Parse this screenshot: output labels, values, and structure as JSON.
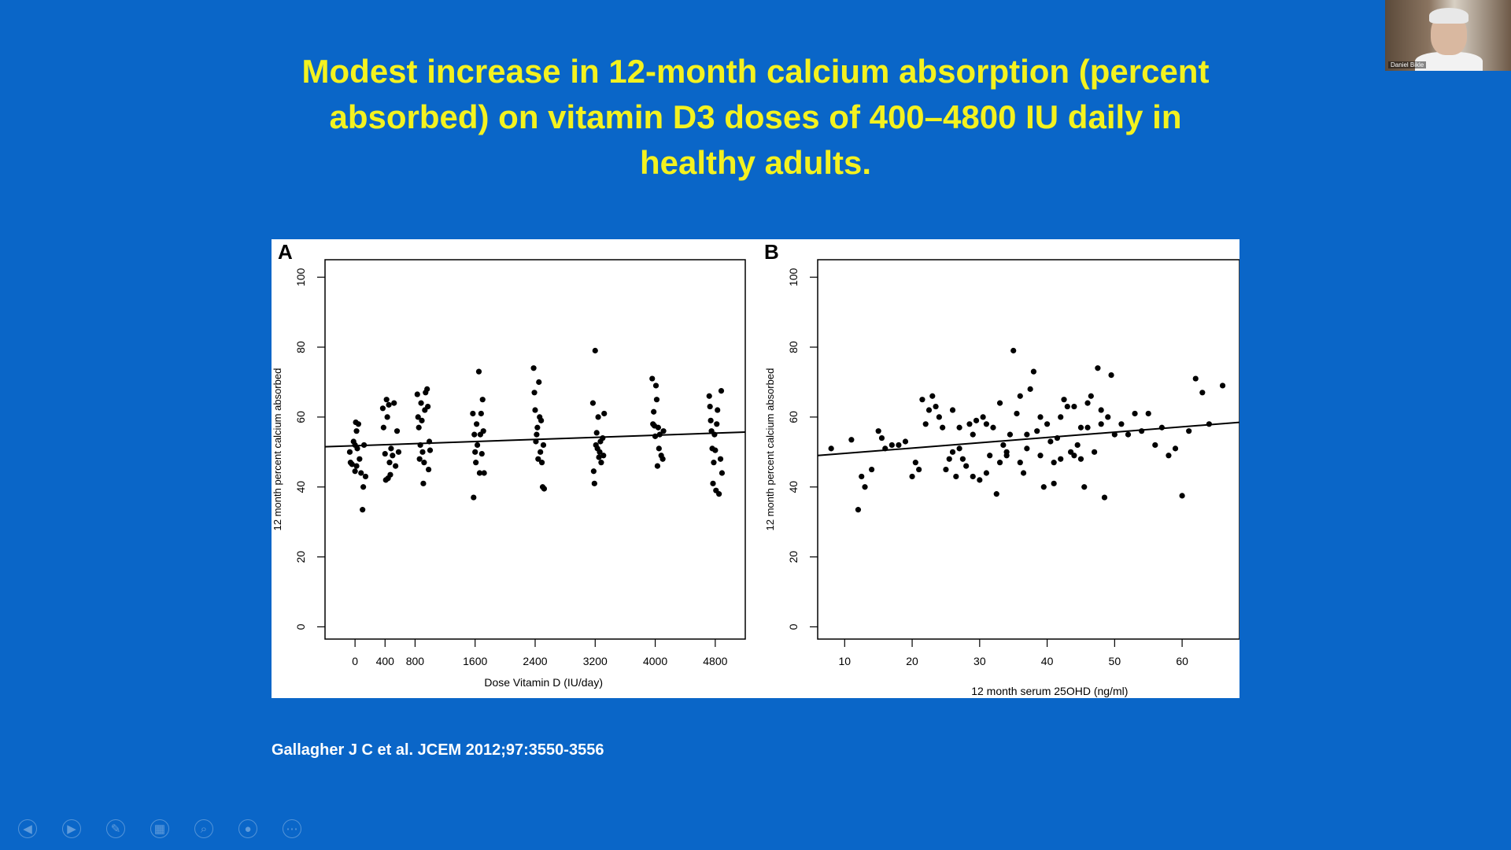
{
  "slide": {
    "title_lines": [
      "Modest increase in 12-month calcium absorption (percent",
      "absorbed) on vitamin D3 doses of 400–4800 IU daily in",
      "healthy adults."
    ],
    "citation": "Gallagher J C et al. JCEM 2012;97:3550-3556"
  },
  "webcam": {
    "name": "Daniel Bikle"
  },
  "toolbar": {
    "icons": [
      "prev-icon",
      "next-icon",
      "pen-icon",
      "slides-icon",
      "zoom-icon",
      "pointer-icon",
      "more-icon"
    ],
    "glyphs": [
      "◀",
      "▶",
      "✎",
      "▦",
      "⌕",
      "●",
      "⋯"
    ]
  },
  "chart_data": [
    {
      "type": "scatter",
      "panel_label": "A",
      "xlabel": "Dose Vitamin D (IU/day)",
      "ylabel": "12 month percent calcium absorbed",
      "xlim": [
        -400,
        5200
      ],
      "ylim": [
        -3.5,
        105
      ],
      "x_ticks": [
        0,
        400,
        800,
        1600,
        2400,
        3200,
        4000,
        4800
      ],
      "y_ticks": [
        0,
        20,
        40,
        60,
        80,
        100
      ],
      "trend": {
        "x": [
          -400,
          5200
        ],
        "y": [
          51.5,
          55.7
        ]
      },
      "points": [
        [
          -70,
          50
        ],
        [
          -40,
          46.5
        ],
        [
          -20,
          53
        ],
        [
          0,
          52
        ],
        [
          0,
          44.5
        ],
        [
          10,
          58.5
        ],
        [
          20,
          56
        ],
        [
          30,
          51
        ],
        [
          45,
          58
        ],
        [
          60,
          48
        ],
        [
          80,
          44
        ],
        [
          100,
          33.5
        ],
        [
          110,
          40
        ],
        [
          120,
          52
        ],
        [
          140,
          43
        ],
        [
          -60,
          47
        ],
        [
          20,
          46
        ],
        [
          370,
          62.5
        ],
        [
          380,
          57
        ],
        [
          400,
          49.5
        ],
        [
          410,
          42
        ],
        [
          420,
          65
        ],
        [
          430,
          60
        ],
        [
          450,
          63.5
        ],
        [
          460,
          47
        ],
        [
          470,
          43.5
        ],
        [
          480,
          51
        ],
        [
          500,
          49
        ],
        [
          520,
          64
        ],
        [
          540,
          46
        ],
        [
          560,
          56
        ],
        [
          580,
          50
        ],
        [
          440,
          42.5
        ],
        [
          830,
          66.5
        ],
        [
          840,
          60
        ],
        [
          850,
          57
        ],
        [
          860,
          48
        ],
        [
          870,
          52
        ],
        [
          880,
          64
        ],
        [
          890,
          59
        ],
        [
          900,
          50
        ],
        [
          910,
          41
        ],
        [
          920,
          47
        ],
        [
          930,
          62
        ],
        [
          940,
          67
        ],
        [
          960,
          68
        ],
        [
          970,
          63
        ],
        [
          990,
          53
        ],
        [
          1000,
          50.5
        ],
        [
          980,
          45
        ],
        [
          1570,
          61
        ],
        [
          1580,
          37
        ],
        [
          1590,
          55
        ],
        [
          1600,
          50
        ],
        [
          1610,
          47
        ],
        [
          1620,
          58
        ],
        [
          1630,
          52
        ],
        [
          1650,
          73
        ],
        [
          1660,
          44
        ],
        [
          1670,
          55
        ],
        [
          1680,
          61
        ],
        [
          1690,
          49.5
        ],
        [
          1700,
          65
        ],
        [
          1710,
          56
        ],
        [
          1720,
          44
        ],
        [
          2380,
          74
        ],
        [
          2390,
          67
        ],
        [
          2400,
          62
        ],
        [
          2410,
          53
        ],
        [
          2420,
          55
        ],
        [
          2430,
          57
        ],
        [
          2440,
          48
        ],
        [
          2450,
          70
        ],
        [
          2460,
          60
        ],
        [
          2470,
          50
        ],
        [
          2480,
          59
        ],
        [
          2490,
          47
        ],
        [
          2500,
          40
        ],
        [
          2510,
          52
        ],
        [
          2520,
          39.5
        ],
        [
          3170,
          64
        ],
        [
          3180,
          44.5
        ],
        [
          3190,
          41
        ],
        [
          3200,
          79
        ],
        [
          3210,
          52
        ],
        [
          3220,
          55.5
        ],
        [
          3230,
          51
        ],
        [
          3240,
          60
        ],
        [
          3250,
          48.5
        ],
        [
          3260,
          50
        ],
        [
          3270,
          53
        ],
        [
          3280,
          47
        ],
        [
          3300,
          54
        ],
        [
          3310,
          49
        ],
        [
          3320,
          61
        ],
        [
          3960,
          71
        ],
        [
          3970,
          58
        ],
        [
          3980,
          61.5
        ],
        [
          3990,
          57.5
        ],
        [
          4000,
          54.5
        ],
        [
          4010,
          69
        ],
        [
          4020,
          65
        ],
        [
          4030,
          46
        ],
        [
          4040,
          57
        ],
        [
          4050,
          51
        ],
        [
          4060,
          55
        ],
        [
          4080,
          49
        ],
        [
          4100,
          48
        ],
        [
          4110,
          56
        ],
        [
          4720,
          66
        ],
        [
          4730,
          63
        ],
        [
          4740,
          59
        ],
        [
          4750,
          56
        ],
        [
          4760,
          51
        ],
        [
          4770,
          41
        ],
        [
          4780,
          47
        ],
        [
          4790,
          55
        ],
        [
          4800,
          50.5
        ],
        [
          4820,
          58
        ],
        [
          4830,
          62
        ],
        [
          4850,
          38
        ],
        [
          4870,
          48
        ],
        [
          4880,
          67.5
        ],
        [
          4890,
          44
        ],
        [
          4810,
          39
        ]
      ]
    },
    {
      "type": "scatter",
      "panel_label": "B",
      "xlabel": "12 month serum 25OHD (ng/ml)",
      "ylabel": "12 month percent calcium absorbed",
      "xlim": [
        6,
        68.5
      ],
      "ylim": [
        -3.5,
        105
      ],
      "x_ticks": [
        10,
        20,
        30,
        40,
        50,
        60
      ],
      "y_ticks": [
        0,
        20,
        40,
        60,
        80,
        100
      ],
      "trend": {
        "x": [
          6,
          68.5
        ],
        "y": [
          49,
          58.5
        ]
      },
      "points": [
        [
          8,
          51
        ],
        [
          11,
          53.5
        ],
        [
          12,
          33.5
        ],
        [
          12.5,
          43
        ],
        [
          13,
          40
        ],
        [
          14,
          45
        ],
        [
          15,
          56
        ],
        [
          15.5,
          54
        ],
        [
          16,
          51
        ],
        [
          17,
          52
        ],
        [
          18,
          52
        ],
        [
          19,
          53
        ],
        [
          20,
          43
        ],
        [
          20.5,
          47
        ],
        [
          21,
          45
        ],
        [
          21.5,
          65
        ],
        [
          22,
          58
        ],
        [
          22.5,
          62
        ],
        [
          23,
          66
        ],
        [
          23.5,
          63
        ],
        [
          24,
          60
        ],
        [
          24.5,
          57
        ],
        [
          25,
          45
        ],
        [
          25.5,
          48
        ],
        [
          26,
          50
        ],
        [
          26.5,
          43
        ],
        [
          27,
          51
        ],
        [
          27.5,
          48
        ],
        [
          28,
          46
        ],
        [
          28.5,
          58
        ],
        [
          29,
          55
        ],
        [
          29.5,
          59
        ],
        [
          30,
          42
        ],
        [
          30.5,
          60
        ],
        [
          31,
          44
        ],
        [
          31.5,
          49
        ],
        [
          32,
          57
        ],
        [
          32.5,
          38
        ],
        [
          33,
          47
        ],
        [
          33.5,
          52
        ],
        [
          34,
          50
        ],
        [
          34.5,
          55
        ],
        [
          35,
          79
        ],
        [
          35.5,
          61
        ],
        [
          36,
          47
        ],
        [
          36.5,
          44
        ],
        [
          37,
          51
        ],
        [
          37.5,
          68
        ],
        [
          38,
          73
        ],
        [
          38.5,
          56
        ],
        [
          39,
          49
        ],
        [
          39.5,
          40
        ],
        [
          40,
          58
        ],
        [
          40.5,
          53
        ],
        [
          41,
          47
        ],
        [
          41.5,
          54
        ],
        [
          42,
          60
        ],
        [
          42.5,
          65
        ],
        [
          43,
          63
        ],
        [
          43.5,
          50
        ],
        [
          44,
          63
        ],
        [
          44.5,
          52
        ],
        [
          45,
          48
        ],
        [
          45.5,
          40
        ],
        [
          46,
          57
        ],
        [
          46.5,
          66
        ],
        [
          47,
          50
        ],
        [
          47.5,
          74
        ],
        [
          48,
          62
        ],
        [
          48.5,
          37
        ],
        [
          49,
          60
        ],
        [
          49.5,
          72
        ],
        [
          50,
          55
        ],
        [
          51,
          58
        ],
        [
          52,
          55
        ],
        [
          53,
          61
        ],
        [
          54,
          56
        ],
        [
          55,
          61
        ],
        [
          56,
          52
        ],
        [
          57,
          57
        ],
        [
          58,
          49
        ],
        [
          59,
          51
        ],
        [
          60,
          37.5
        ],
        [
          61,
          56
        ],
        [
          62,
          71
        ],
        [
          63,
          67
        ],
        [
          64,
          58
        ],
        [
          66,
          69
        ],
        [
          26,
          62
        ],
        [
          29,
          43
        ],
        [
          31,
          58
        ],
        [
          33,
          64
        ],
        [
          36,
          66
        ],
        [
          39,
          60
        ],
        [
          41,
          41
        ],
        [
          44,
          49
        ],
        [
          46,
          64
        ],
        [
          48,
          58
        ],
        [
          27,
          57
        ],
        [
          34,
          49
        ],
        [
          37,
          55
        ],
        [
          42,
          48
        ],
        [
          45,
          57
        ]
      ]
    }
  ]
}
